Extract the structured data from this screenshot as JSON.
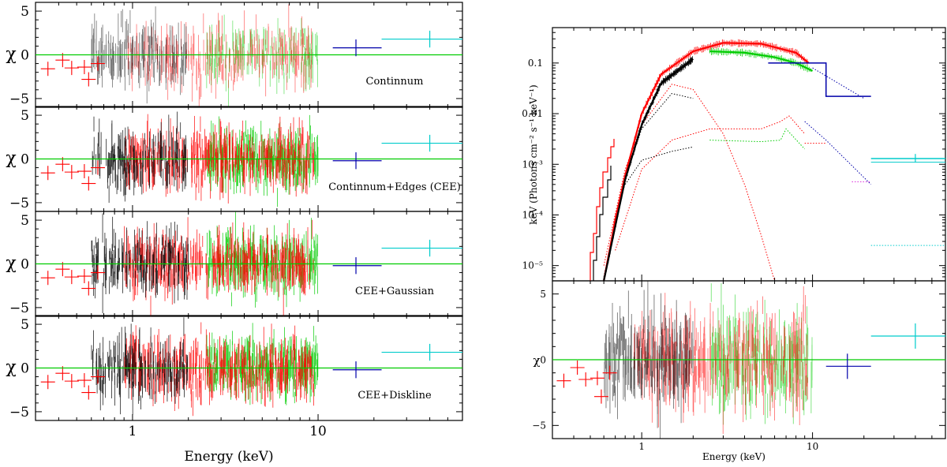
{
  "chart_data": [
    {
      "type": "scatter",
      "subtype": "residual-stack",
      "x_scale": "log",
      "xlim": [
        0.3,
        60
      ],
      "ylim": [
        -6,
        6
      ],
      "xlabel": "Energy (keV)",
      "ylabel_symbol": "χ",
      "x_major_ticks": [
        {
          "value": 1,
          "label": "1"
        },
        {
          "value": 10,
          "label": "10"
        }
      ],
      "y_ticks": [
        {
          "value": 5,
          "label": "5"
        },
        {
          "value": 0,
          "label": "0"
        },
        {
          "value": -5,
          "label": "−5"
        }
      ],
      "panels": [
        {
          "name": "Continnum",
          "label": "Continnum",
          "zero_line": "#00cc00"
        },
        {
          "name": "Continnum+Edges (CEE)",
          "label": "Continnum+Edges (CEE)",
          "zero_line": "#00cc00"
        },
        {
          "name": "CEE+Gaussian",
          "label": "CEE+Gaussian",
          "zero_line": "#00cc00"
        },
        {
          "name": "CEE+Diskline",
          "label": "CEE+Diskline",
          "zero_line": "#00cc00"
        }
      ],
      "series": [
        {
          "name": "instrument-black",
          "color": "#000000",
          "range_keV": [
            0.6,
            2.0
          ]
        },
        {
          "name": "instrument-red",
          "color": "#ff0000",
          "range_keV": [
            0.35,
            9.5
          ]
        },
        {
          "name": "instrument-green",
          "color": "#00cc00",
          "range_keV": [
            2.5,
            10.0
          ]
        },
        {
          "name": "instrument-blue",
          "color": "#0000aa",
          "points": [
            {
              "x": 16,
              "y": 0.0,
              "xerr": [
                12,
                22
              ],
              "yerr": 0.8
            }
          ]
        },
        {
          "name": "instrument-cyan",
          "color": "#00cccc",
          "points": [
            {
              "x": 40,
              "y": 1.8,
              "xerr": [
                22,
                60
              ],
              "yerr": 0.8
            }
          ]
        }
      ]
    },
    {
      "type": "line",
      "subtype": "unfolded-spectrum",
      "x_scale": "log",
      "y_scale": "log",
      "xlim": [
        0.3,
        60
      ],
      "ylim": [
        5e-06,
        0.5
      ],
      "ylabel": "keV (Photons cm⁻² s⁻¹ keV⁻¹)",
      "x_major_ticks": [
        {
          "value": 1,
          "label": "1"
        },
        {
          "value": 10,
          "label": "10"
        }
      ],
      "y_ticks": [
        {
          "value": 0.1,
          "label": "0.1"
        },
        {
          "value": 0.01,
          "label": "0.01"
        },
        {
          "value": 0.001,
          "label": "10⁻³"
        },
        {
          "value": 0.0001,
          "label": "10⁻⁴"
        },
        {
          "value": 1e-05,
          "label": "10⁻⁵"
        }
      ],
      "series": [
        {
          "name": "instrument-red",
          "color": "#ff0000",
          "x": [
            0.6,
            0.7,
            0.8,
            1.0,
            1.3,
            2.0,
            3.0,
            5.0,
            8.0,
            9.5
          ],
          "y": [
            5e-06,
            8e-05,
            0.0006,
            0.01,
            0.06,
            0.17,
            0.25,
            0.24,
            0.16,
            0.1
          ]
        },
        {
          "name": "instrument-black",
          "color": "#000000",
          "x": [
            0.6,
            0.7,
            0.8,
            1.0,
            1.3,
            2.0
          ],
          "y": [
            5e-06,
            6e-05,
            0.0005,
            0.006,
            0.04,
            0.12
          ]
        },
        {
          "name": "instrument-green",
          "color": "#00cc00",
          "x": [
            2.5,
            4.0,
            6.0,
            8.0,
            10.0
          ],
          "y": [
            0.17,
            0.16,
            0.13,
            0.1,
            0.07
          ]
        },
        {
          "name": "instrument-blue",
          "color": "#0000aa",
          "x": [
            5.5,
            12,
            12,
            22
          ],
          "y": [
            0.1,
            0.1,
            0.022,
            0.022
          ]
        },
        {
          "name": "instrument-cyan",
          "color": "#00cccc",
          "x": [
            22,
            60
          ],
          "y": [
            0.0013,
            0.0013
          ]
        }
      ]
    },
    {
      "type": "scatter",
      "subtype": "residual",
      "x_scale": "log",
      "xlim": [
        0.3,
        60
      ],
      "ylim": [
        -6,
        6
      ],
      "xlabel": "Energy (keV)",
      "ylabel_symbol": "χ",
      "x_major_ticks": [
        {
          "value": 1,
          "label": "1"
        },
        {
          "value": 10,
          "label": "10"
        }
      ],
      "y_ticks": [
        {
          "value": 5,
          "label": "5"
        },
        {
          "value": 0,
          "label": "0"
        },
        {
          "value": -5,
          "label": "−5"
        }
      ]
    }
  ]
}
